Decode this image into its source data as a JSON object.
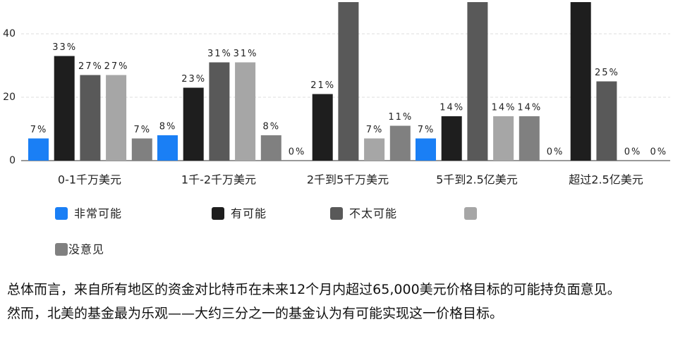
{
  "chart_data": {
    "type": "bar",
    "categories": [
      "0-1千万美元",
      "1千-2千万美元",
      "2千到5千万美元",
      "5千到2.5亿美元",
      "超过2.5亿美元"
    ],
    "series": [
      {
        "name": "非常可能",
        "color": "#1a7ff5",
        "values": [
          7,
          8,
          0,
          7,
          0
        ],
        "value_labels": [
          "7%",
          "8%",
          "0%",
          "7%",
          "0%"
        ]
      },
      {
        "name": "有可能",
        "color": "#1e1e1e",
        "values": [
          33,
          23,
          21,
          14,
          50
        ],
        "value_labels": [
          "33%",
          "23%",
          "21%",
          "14%",
          null
        ]
      },
      {
        "name": "不太可能",
        "color": "#595959",
        "values": [
          27,
          31,
          50,
          50,
          25
        ],
        "value_labels": [
          "27%",
          "31%",
          null,
          null,
          "25%"
        ]
      },
      {
        "name": null,
        "color": "#a6a6a6",
        "values": [
          27,
          31,
          7,
          14,
          0
        ],
        "value_labels": [
          "27%",
          "31%",
          "7%",
          "14%",
          "0%"
        ]
      },
      {
        "name": "没意见",
        "color": "#808080",
        "values": [
          7,
          8,
          11,
          14,
          0
        ],
        "value_labels": [
          "7%",
          "8%",
          "11%",
          "14%",
          "0%"
        ]
      }
    ],
    "ylim": [
      0,
      51
    ],
    "yticks": [
      0,
      20,
      40
    ],
    "grid": true
  },
  "text": {
    "paragraphs": [
      "总体而言，来自所有地区的资金对比特币在未来12个月内超过65,000美元价格目标的可能持负面意见。",
      "然而，北美的基金最为乐观——大约三分之一的基金认为有可能实现这一价格目标。"
    ]
  }
}
